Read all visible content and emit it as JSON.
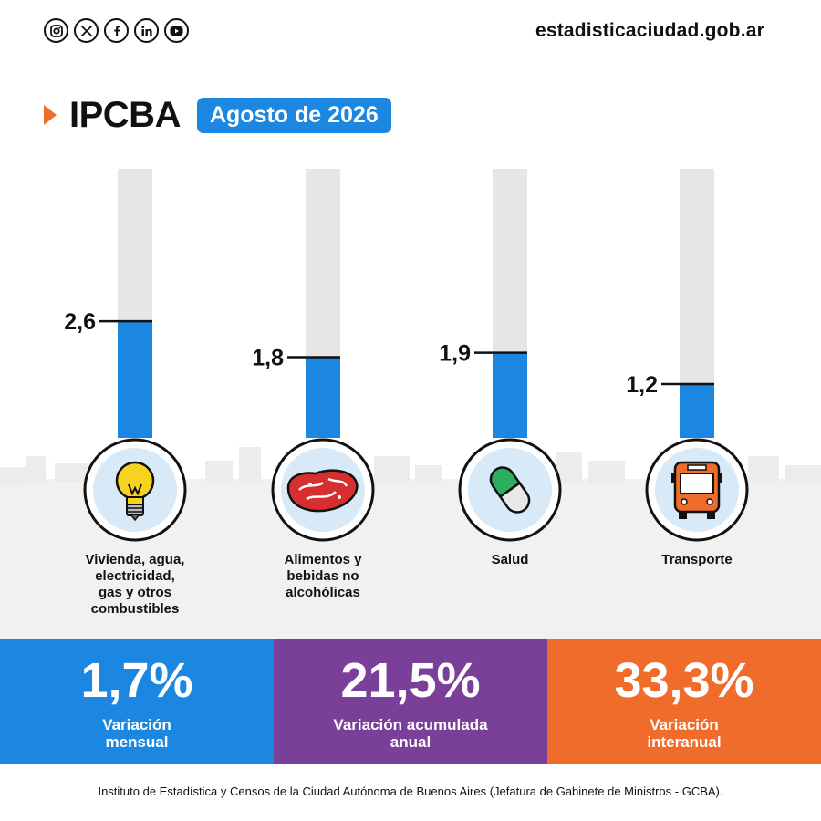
{
  "header": {
    "social_icons": [
      "instagram-icon",
      "x-icon",
      "facebook-icon",
      "linkedin-icon",
      "youtube-icon"
    ],
    "site_url": "estadisticaciudad.gob.ar"
  },
  "title": "IPCBA",
  "period": "Agosto de 2026",
  "colors": {
    "accent_blue": "#1c87e0",
    "track_gray": "#e6e6e6",
    "purple": "#7a3f99",
    "orange": "#ef6c2a",
    "icon_bg": "#d8e9f8"
  },
  "chart_data": {
    "type": "bar",
    "categories": [
      "Vivienda, agua, electricidad, gas y otros combustibles",
      "Alimentos y bebidas no alcohólicas",
      "Salud",
      "Transporte"
    ],
    "values": [
      2.6,
      1.8,
      1.9,
      1.2
    ],
    "value_labels": [
      "2,6",
      "1,8",
      "1,9",
      "1,2"
    ],
    "icons": [
      "lightbulb-icon",
      "meat-icon",
      "pill-icon",
      "bus-icon"
    ],
    "ylim": [
      0,
      6.0
    ]
  },
  "category_lines": [
    [
      "Vivienda, agua,",
      "electricidad,",
      "gas y otros",
      "combustibles"
    ],
    [
      "Alimentos y",
      "bebidas no",
      "alcohólicas"
    ],
    [
      "Salud"
    ],
    [
      "Transporte"
    ]
  ],
  "summary": [
    {
      "value": "1,7%",
      "label": [
        "Variación",
        "mensual"
      ],
      "color": "#1c87e0"
    },
    {
      "value": "21,5%",
      "label": [
        "Variación acumulada",
        "anual"
      ],
      "color": "#7a3f99"
    },
    {
      "value": "33,3%",
      "label": [
        "Variación",
        "interanual"
      ],
      "color": "#ef6c2a"
    }
  ],
  "footer": "Instituto de Estadística y Censos de la Ciudad Autónoma de Buenos Aires (Jefatura de Gabinete de Ministros - GCBA)."
}
